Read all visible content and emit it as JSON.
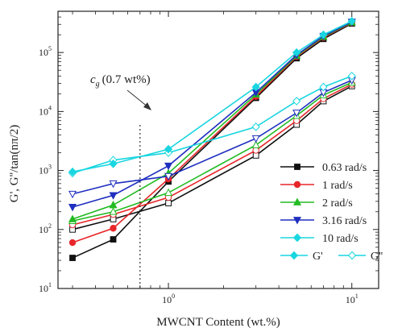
{
  "chart_data": {
    "type": "line",
    "xlabel": "MWCNT Content (wt.%)",
    "ylabel": "G', G''/tan(nπ/2)",
    "xscale": "log",
    "yscale": "log",
    "xlim": [
      0.25,
      14
    ],
    "ylim": [
      10,
      500000
    ],
    "x_ticks": [
      {
        "value": 1,
        "label": "10",
        "sup": "0"
      },
      {
        "value": 10,
        "label": "10",
        "sup": "1"
      }
    ],
    "y_ticks": [
      {
        "value": 10,
        "label": "10",
        "sup": "1"
      },
      {
        "value": 100,
        "label": "10",
        "sup": "2"
      },
      {
        "value": 1000,
        "label": "10",
        "sup": "3"
      },
      {
        "value": 10000,
        "label": "10",
        "sup": "4"
      },
      {
        "value": 100000,
        "label": "10",
        "sup": "5"
      }
    ],
    "x": [
      0.3,
      0.5,
      1,
      3,
      5,
      7,
      10
    ],
    "series": [
      {
        "name": "0.63 rad/s",
        "color": "#111111",
        "marker": "square",
        "g_prime": [
          33,
          68,
          650,
          17000,
          80000,
          170000,
          310000
        ],
        "g_double_prime": [
          100,
          150,
          280,
          1800,
          6000,
          15000,
          27000
        ]
      },
      {
        "name": "1 rad/s",
        "color": "#e8262a",
        "marker": "circle",
        "g_prime": [
          60,
          105,
          720,
          18000,
          85000,
          180000,
          320000
        ],
        "g_double_prime": [
          120,
          180,
          350,
          2200,
          7000,
          16500,
          29000
        ]
      },
      {
        "name": "2 rad/s",
        "color": "#22bb22",
        "marker": "triangle-up",
        "g_prime": [
          150,
          260,
          900,
          19500,
          88000,
          185000,
          325000
        ],
        "g_double_prime": [
          140,
          200,
          420,
          2700,
          8500,
          19000,
          31000
        ]
      },
      {
        "name": "3.16 rad/s",
        "color": "#1f2fbf",
        "marker": "triangle-down",
        "g_prime": [
          240,
          380,
          1200,
          21000,
          91000,
          190000,
          330000
        ],
        "g_double_prime": [
          400,
          600,
          800,
          3500,
          9500,
          21000,
          34000
        ]
      },
      {
        "name": "10 rad/s",
        "color": "#19d6e0",
        "marker": "diamond",
        "g_prime": [
          950,
          1300,
          2300,
          26000,
          100000,
          200000,
          340000
        ],
        "g_double_prime": [
          900,
          1500,
          2000,
          5500,
          15000,
          26000,
          40000
        ]
      }
    ],
    "legend": {
      "placement": "bottom-right",
      "style_entries": [
        {
          "label": "G'",
          "style": "filled"
        },
        {
          "label": "G''",
          "style": "open"
        }
      ]
    },
    "annotation": {
      "symbol": "c",
      "subscript": "g",
      "text": "(0.7 wt%)",
      "x_value": 0.7
    }
  }
}
